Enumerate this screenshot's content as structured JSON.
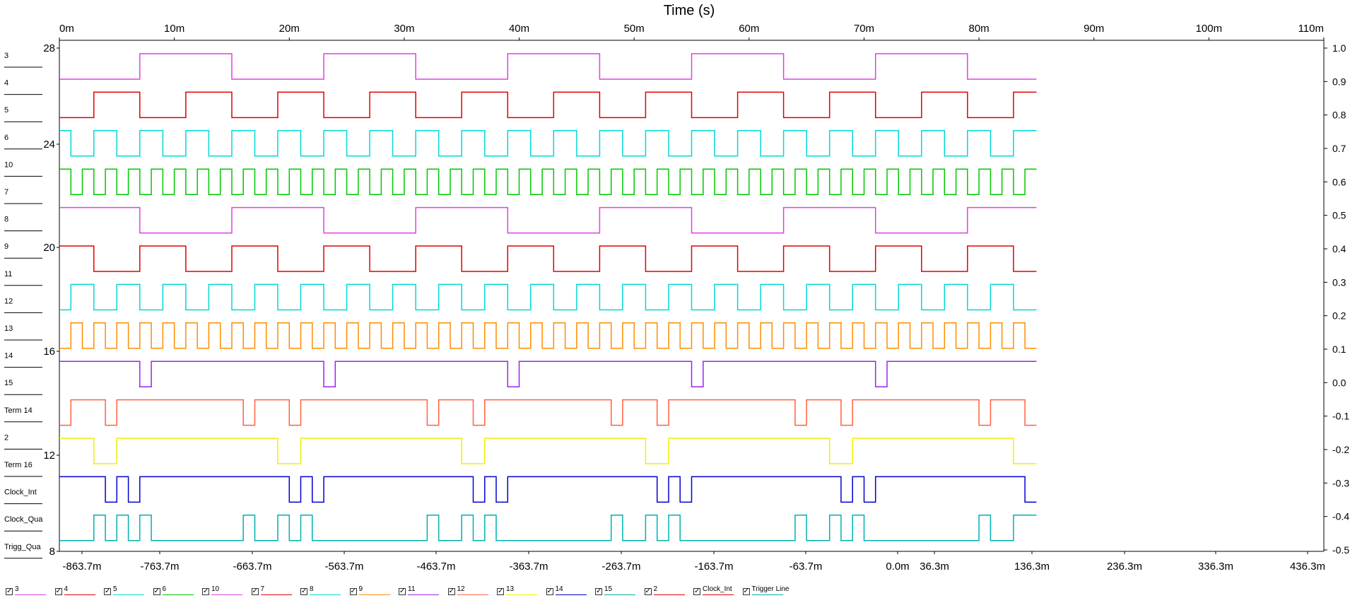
{
  "chart_data": {
    "type": "line",
    "title": "Time (s)",
    "x_top_axis": {
      "ticks": [
        "0m",
        "10m",
        "20m",
        "30m",
        "40m",
        "50m",
        "60m",
        "70m",
        "80m",
        "90m",
        "100m",
        "110m"
      ],
      "range": [
        0,
        110
      ]
    },
    "x_bottom_axis": {
      "ticks": [
        "-863.7m",
        "-763.7m",
        "-663.7m",
        "-563.7m",
        "-463.7m",
        "-363.7m",
        "-263.7m",
        "-163.7m",
        "-63.7m",
        "0.0m",
        "36.3m",
        "136.3m",
        "236.3m",
        "336.3m",
        "436.3m"
      ]
    },
    "y_left_axis": {
      "ticks": [
        "28",
        "24",
        "20",
        "16",
        "12",
        "8"
      ]
    },
    "y_right_axis": {
      "ticks": [
        "1.0",
        "0.9",
        "0.8",
        "0.7",
        "0.6",
        "0.5",
        "0.4",
        "0.3",
        "0.2",
        "0.1",
        "0.0",
        "-0.1",
        "-0.2",
        "-0.3",
        "-0.4",
        "-0.5"
      ]
    },
    "channel_labels": [
      "3",
      "4",
      "5",
      "6",
      "10",
      "7",
      "8",
      "9",
      "11",
      "12",
      "13",
      "14",
      "15",
      "Term 14",
      "2",
      "Term 16",
      "Clock_Int",
      "Clock_Qua",
      "Trigg_Qua"
    ],
    "series": [
      {
        "name": "3",
        "color": "#e040e0",
        "high": [
          [
            7,
            15
          ],
          [
            23,
            31
          ],
          [
            39,
            47
          ],
          [
            55,
            63
          ],
          [
            71,
            79
          ]
        ]
      },
      {
        "name": "4",
        "color": "#e00000",
        "high": [
          [
            3,
            7
          ],
          [
            11,
            15
          ],
          [
            19,
            23
          ],
          [
            27,
            31
          ],
          [
            35,
            39
          ],
          [
            43,
            47
          ],
          [
            51,
            55
          ],
          [
            59,
            63
          ],
          [
            67,
            71
          ],
          [
            75,
            79
          ],
          [
            83,
            85
          ]
        ]
      },
      {
        "name": "5",
        "color": "#00d8d8",
        "high": [
          [
            0,
            1
          ],
          [
            3,
            5
          ],
          [
            7,
            9
          ],
          [
            11,
            13
          ],
          [
            15,
            17
          ],
          [
            19,
            21
          ],
          [
            23,
            25
          ],
          [
            27,
            29
          ],
          [
            31,
            33
          ],
          [
            35,
            37
          ],
          [
            39,
            41
          ],
          [
            43,
            45
          ],
          [
            47,
            49
          ],
          [
            51,
            53
          ],
          [
            55,
            57
          ],
          [
            59,
            61
          ],
          [
            63,
            65
          ],
          [
            67,
            69
          ],
          [
            71,
            73
          ],
          [
            75,
            77
          ],
          [
            79,
            81
          ],
          [
            83,
            85
          ]
        ]
      },
      {
        "name": "6",
        "color": "#00c800",
        "high": [
          [
            0,
            1
          ],
          [
            2,
            3
          ],
          [
            4,
            5
          ],
          [
            6,
            7
          ],
          [
            8,
            9
          ],
          [
            10,
            11
          ],
          [
            12,
            13
          ],
          [
            14,
            15
          ],
          [
            16,
            17
          ],
          [
            18,
            19
          ],
          [
            20,
            21
          ],
          [
            22,
            23
          ],
          [
            24,
            25
          ],
          [
            26,
            27
          ],
          [
            28,
            29
          ],
          [
            30,
            31
          ],
          [
            32,
            33
          ],
          [
            34,
            35
          ],
          [
            36,
            37
          ],
          [
            38,
            39
          ],
          [
            40,
            41
          ],
          [
            42,
            43
          ],
          [
            44,
            45
          ],
          [
            46,
            47
          ],
          [
            48,
            49
          ],
          [
            50,
            51
          ],
          [
            52,
            53
          ],
          [
            54,
            55
          ],
          [
            56,
            57
          ],
          [
            58,
            59
          ],
          [
            60,
            61
          ],
          [
            62,
            63
          ],
          [
            64,
            65
          ],
          [
            66,
            67
          ],
          [
            68,
            69
          ],
          [
            70,
            71
          ],
          [
            72,
            73
          ],
          [
            74,
            75
          ],
          [
            76,
            77
          ],
          [
            78,
            79
          ],
          [
            80,
            81
          ],
          [
            82,
            83
          ],
          [
            84,
            85
          ]
        ]
      },
      {
        "name": "10",
        "color": "#e040e0",
        "high": [
          [
            0,
            7
          ],
          [
            15,
            23
          ],
          [
            31,
            39
          ],
          [
            47,
            55
          ],
          [
            63,
            71
          ],
          [
            79,
            85
          ]
        ]
      },
      {
        "name": "7",
        "color": "#e00000",
        "high": [
          [
            0,
            3
          ],
          [
            7,
            11
          ],
          [
            15,
            19
          ],
          [
            23,
            27
          ],
          [
            31,
            35
          ],
          [
            39,
            43
          ],
          [
            47,
            51
          ],
          [
            55,
            59
          ],
          [
            63,
            67
          ],
          [
            71,
            75
          ],
          [
            79,
            83
          ]
        ]
      },
      {
        "name": "8",
        "color": "#00d8d8",
        "high": [
          [
            1,
            3
          ],
          [
            5,
            7
          ],
          [
            9,
            11
          ],
          [
            13,
            15
          ],
          [
            17,
            19
          ],
          [
            21,
            23
          ],
          [
            25,
            27
          ],
          [
            29,
            31
          ],
          [
            33,
            35
          ],
          [
            37,
            39
          ],
          [
            41,
            43
          ],
          [
            45,
            47
          ],
          [
            49,
            51
          ],
          [
            53,
            55
          ],
          [
            57,
            59
          ],
          [
            61,
            63
          ],
          [
            65,
            67
          ],
          [
            69,
            71
          ],
          [
            73,
            75
          ],
          [
            77,
            79
          ],
          [
            81,
            83
          ]
        ]
      },
      {
        "name": "9",
        "color": "#ff8c00",
        "high": [
          [
            1,
            2
          ],
          [
            3,
            4
          ],
          [
            5,
            6
          ],
          [
            7,
            8
          ],
          [
            9,
            10
          ],
          [
            11,
            12
          ],
          [
            13,
            14
          ],
          [
            15,
            16
          ],
          [
            17,
            18
          ],
          [
            19,
            20
          ],
          [
            21,
            22
          ],
          [
            23,
            24
          ],
          [
            25,
            26
          ],
          [
            27,
            28
          ],
          [
            29,
            30
          ],
          [
            31,
            32
          ],
          [
            33,
            34
          ],
          [
            35,
            36
          ],
          [
            37,
            38
          ],
          [
            39,
            40
          ],
          [
            41,
            42
          ],
          [
            43,
            44
          ],
          [
            45,
            46
          ],
          [
            47,
            48
          ],
          [
            49,
            50
          ],
          [
            51,
            52
          ],
          [
            53,
            54
          ],
          [
            55,
            56
          ],
          [
            57,
            58
          ],
          [
            59,
            60
          ],
          [
            61,
            62
          ],
          [
            63,
            64
          ],
          [
            65,
            66
          ],
          [
            67,
            68
          ],
          [
            69,
            70
          ],
          [
            71,
            72
          ],
          [
            73,
            74
          ],
          [
            75,
            76
          ],
          [
            77,
            78
          ],
          [
            79,
            80
          ],
          [
            81,
            82
          ],
          [
            83,
            84
          ]
        ]
      },
      {
        "name": "11",
        "color": "#a020f0",
        "high": [
          [
            0,
            7
          ],
          [
            8,
            23
          ],
          [
            24,
            39
          ],
          [
            40,
            55
          ],
          [
            56,
            71
          ],
          [
            72,
            85
          ]
        ]
      },
      {
        "name": "12",
        "color": "#ff6040",
        "high": [
          [
            1,
            4
          ],
          [
            5,
            16
          ],
          [
            17,
            20
          ],
          [
            21,
            32
          ],
          [
            33,
            36
          ],
          [
            37,
            48
          ],
          [
            49,
            52
          ],
          [
            53,
            64
          ],
          [
            65,
            68
          ],
          [
            69,
            80
          ],
          [
            81,
            84
          ]
        ]
      },
      {
        "name": "13",
        "color": "#f0f000",
        "high": [
          [
            0,
            3
          ],
          [
            5,
            19
          ],
          [
            21,
            35
          ],
          [
            37,
            51
          ],
          [
            53,
            67
          ],
          [
            69,
            83
          ]
        ]
      },
      {
        "name": "14",
        "color": "#0000d0",
        "high": [
          [
            0,
            4
          ],
          [
            5,
            6
          ],
          [
            7,
            20
          ],
          [
            21,
            22
          ],
          [
            23,
            36
          ],
          [
            37,
            38
          ],
          [
            39,
            52
          ],
          [
            53,
            54
          ],
          [
            55,
            68
          ],
          [
            69,
            70
          ],
          [
            71,
            84
          ]
        ]
      },
      {
        "name": "15",
        "color": "#00b0b0",
        "high": [
          [
            3,
            4
          ],
          [
            5,
            6
          ],
          [
            7,
            8
          ],
          [
            16,
            17
          ],
          [
            19,
            20
          ],
          [
            21,
            22
          ],
          [
            32,
            33
          ],
          [
            35,
            36
          ],
          [
            37,
            38
          ],
          [
            48,
            49
          ],
          [
            51,
            52
          ],
          [
            53,
            54
          ],
          [
            64,
            65
          ],
          [
            67,
            68
          ],
          [
            69,
            70
          ],
          [
            80,
            81
          ],
          [
            83,
            85
          ]
        ]
      }
    ]
  },
  "legend": [
    {
      "label": "3",
      "color": "#e040e0"
    },
    {
      "label": "4",
      "color": "#e00000"
    },
    {
      "label": "5",
      "color": "#00d8d8"
    },
    {
      "label": "6",
      "color": "#00c800"
    },
    {
      "label": "10",
      "color": "#e040e0"
    },
    {
      "label": "7",
      "color": "#e00000"
    },
    {
      "label": "8",
      "color": "#00d8d8"
    },
    {
      "label": "9",
      "color": "#ff8c00"
    },
    {
      "label": "11",
      "color": "#a020f0"
    },
    {
      "label": "12",
      "color": "#ff6040"
    },
    {
      "label": "13",
      "color": "#f0f000"
    },
    {
      "label": "14",
      "color": "#0000d0"
    },
    {
      "label": "15",
      "color": "#00b0b0"
    },
    {
      "label": "2",
      "color": "#e00000"
    },
    {
      "label": "Clock_Int",
      "color": "#e00000"
    },
    {
      "label": "Trigger Line",
      "color": "#00b0b0"
    }
  ]
}
